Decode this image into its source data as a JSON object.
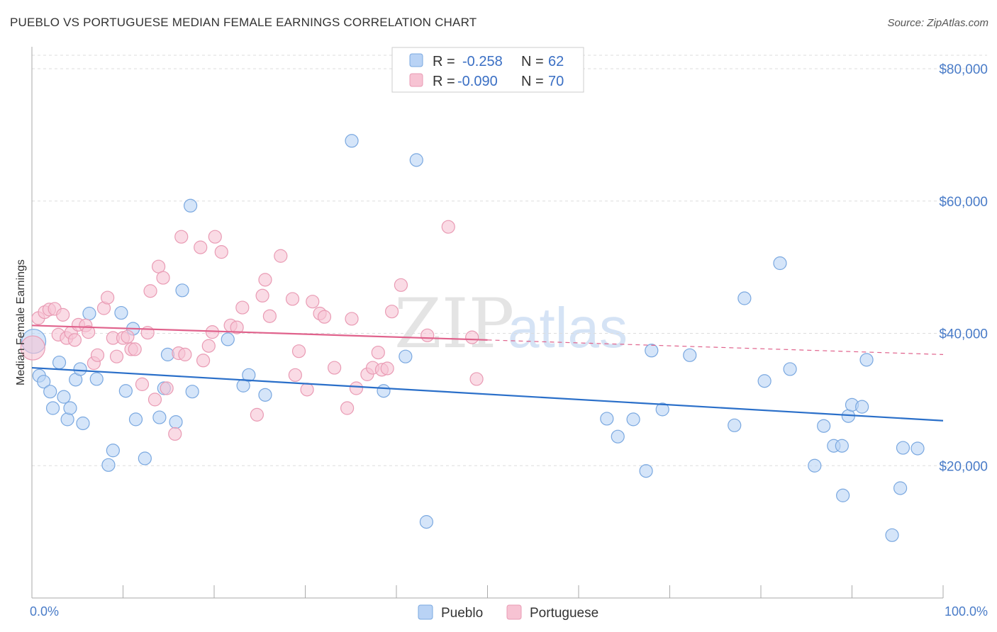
{
  "title": "PUEBLO VS PORTUGUESE MEDIAN FEMALE EARNINGS CORRELATION CHART",
  "source": "Source: ZipAtlas.com",
  "watermark": {
    "zip": "ZIP",
    "atlas": "atlas"
  },
  "colors": {
    "pueblo_fill": "#b9d3f5",
    "pueblo_stroke": "#7aa8e0",
    "pueblo_line": "#2a6fc9",
    "portuguese_fill": "#f7c3d3",
    "portuguese_stroke": "#e99bb4",
    "portuguese_line": "#e0628c",
    "grid": "#dddddd",
    "tick_text": "#4a7cc8"
  },
  "stats_box": {
    "rows": [
      {
        "series": "Pueblo",
        "r_label": "R =",
        "r_value": "-0.258",
        "n_label": "N =",
        "n_value": "62"
      },
      {
        "series": "Portuguese",
        "r_label": "R =",
        "r_value": "-0.090",
        "n_label": "N =",
        "n_value": "70"
      }
    ]
  },
  "chart_data": {
    "type": "scatter",
    "title": "PUEBLO VS PORTUGUESE MEDIAN FEMALE EARNINGS CORRELATION CHART",
    "xlabel": "",
    "ylabel": "Median Female Earnings",
    "xlim": [
      0,
      100
    ],
    "ylim": [
      0,
      80000
    ],
    "x_tick_labels": [
      "0.0%",
      "100.0%"
    ],
    "y_ticks": [
      20000,
      40000,
      60000,
      80000
    ],
    "y_tick_labels": [
      "$20,000",
      "$40,000",
      "$60,000",
      "$80,000"
    ],
    "grid": "horizontal dashed",
    "legend": {
      "placement": "bottom-center",
      "entries": [
        "Pueblo",
        "Portuguese"
      ]
    },
    "series": [
      {
        "name": "Pueblo",
        "trend": {
          "x": [
            0,
            100
          ],
          "y": [
            34800,
            26800
          ],
          "solid_until": 100
        },
        "points": [
          [
            0.2,
            38800
          ],
          [
            0.8,
            33600
          ],
          [
            1.3,
            32700
          ],
          [
            2.0,
            31200
          ],
          [
            2.3,
            28700
          ],
          [
            3.0,
            35600
          ],
          [
            3.5,
            30400
          ],
          [
            3.9,
            27000
          ],
          [
            4.2,
            28700
          ],
          [
            4.8,
            33000
          ],
          [
            5.3,
            34600
          ],
          [
            5.6,
            26400
          ],
          [
            6.3,
            43000
          ],
          [
            7.1,
            33100
          ],
          [
            8.4,
            20100
          ],
          [
            8.9,
            22300
          ],
          [
            9.8,
            43100
          ],
          [
            10.3,
            31300
          ],
          [
            11.1,
            40700
          ],
          [
            11.4,
            27000
          ],
          [
            12.4,
            21100
          ],
          [
            14.0,
            27300
          ],
          [
            14.5,
            31700
          ],
          [
            14.9,
            36800
          ],
          [
            15.8,
            26600
          ],
          [
            16.5,
            46500
          ],
          [
            17.4,
            59300
          ],
          [
            17.6,
            31200
          ],
          [
            21.5,
            39100
          ],
          [
            23.2,
            32100
          ],
          [
            23.8,
            33700
          ],
          [
            25.6,
            30700
          ],
          [
            35.1,
            69100
          ],
          [
            38.6,
            31300
          ],
          [
            41.0,
            36500
          ],
          [
            42.2,
            66200
          ],
          [
            43.3,
            11500
          ],
          [
            63.1,
            27100
          ],
          [
            64.3,
            24400
          ],
          [
            66.0,
            27000
          ],
          [
            67.4,
            19200
          ],
          [
            68.0,
            37400
          ],
          [
            69.2,
            28500
          ],
          [
            72.2,
            36700
          ],
          [
            77.1,
            26100
          ],
          [
            78.2,
            45300
          ],
          [
            80.4,
            32800
          ],
          [
            82.1,
            50600
          ],
          [
            83.2,
            34600
          ],
          [
            85.9,
            20000
          ],
          [
            86.9,
            26000
          ],
          [
            88.0,
            23000
          ],
          [
            88.9,
            23000
          ],
          [
            89.0,
            15500
          ],
          [
            89.6,
            27500
          ],
          [
            90.0,
            29200
          ],
          [
            91.1,
            28900
          ],
          [
            91.6,
            36000
          ],
          [
            94.4,
            9500
          ],
          [
            95.3,
            16600
          ],
          [
            95.6,
            22700
          ],
          [
            97.2,
            22600
          ]
        ]
      },
      {
        "name": "Portuguese",
        "trend": {
          "x": [
            0,
            100
          ],
          "y": [
            41200,
            36800
          ],
          "solid_until": 50
        },
        "points": [
          [
            0.1,
            37800
          ],
          [
            0.7,
            42300
          ],
          [
            1.4,
            43200
          ],
          [
            1.9,
            43600
          ],
          [
            2.5,
            43700
          ],
          [
            2.9,
            39800
          ],
          [
            3.4,
            42800
          ],
          [
            3.8,
            39300
          ],
          [
            4.3,
            40100
          ],
          [
            4.7,
            39000
          ],
          [
            5.1,
            41300
          ],
          [
            5.9,
            41200
          ],
          [
            6.2,
            40200
          ],
          [
            6.8,
            35500
          ],
          [
            7.2,
            36700
          ],
          [
            7.9,
            43800
          ],
          [
            8.3,
            45400
          ],
          [
            8.9,
            39300
          ],
          [
            9.3,
            36500
          ],
          [
            10.0,
            39300
          ],
          [
            10.5,
            39500
          ],
          [
            10.9,
            37600
          ],
          [
            11.3,
            37600
          ],
          [
            12.1,
            32300
          ],
          [
            12.7,
            40100
          ],
          [
            13.0,
            46400
          ],
          [
            13.5,
            30000
          ],
          [
            13.9,
            50100
          ],
          [
            14.4,
            48400
          ],
          [
            14.8,
            31700
          ],
          [
            15.7,
            24800
          ],
          [
            16.1,
            37000
          ],
          [
            16.4,
            54600
          ],
          [
            16.8,
            36800
          ],
          [
            18.5,
            53000
          ],
          [
            18.8,
            35900
          ],
          [
            19.4,
            38100
          ],
          [
            19.8,
            40200
          ],
          [
            20.1,
            54600
          ],
          [
            20.8,
            52300
          ],
          [
            21.8,
            41200
          ],
          [
            22.5,
            40900
          ],
          [
            23.1,
            43900
          ],
          [
            24.7,
            27700
          ],
          [
            25.3,
            45700
          ],
          [
            25.6,
            48100
          ],
          [
            26.1,
            42600
          ],
          [
            27.3,
            51700
          ],
          [
            28.6,
            45200
          ],
          [
            28.9,
            33700
          ],
          [
            29.3,
            37300
          ],
          [
            30.2,
            31500
          ],
          [
            30.8,
            44800
          ],
          [
            31.6,
            43000
          ],
          [
            32.1,
            42500
          ],
          [
            33.2,
            34800
          ],
          [
            34.6,
            28700
          ],
          [
            35.1,
            42200
          ],
          [
            35.6,
            31700
          ],
          [
            36.8,
            33800
          ],
          [
            37.4,
            34800
          ],
          [
            38.0,
            37100
          ],
          [
            38.4,
            34500
          ],
          [
            39.0,
            34700
          ],
          [
            39.5,
            43300
          ],
          [
            40.5,
            47300
          ],
          [
            43.4,
            39700
          ],
          [
            45.7,
            56100
          ],
          [
            48.3,
            39400
          ],
          [
            48.8,
            33100
          ]
        ]
      }
    ]
  }
}
